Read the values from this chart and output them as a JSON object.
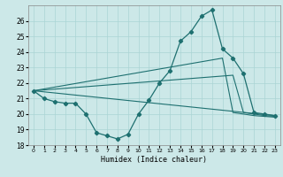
{
  "xlabel": "Humidex (Indice chaleur)",
  "xlim": [
    -0.5,
    23.5
  ],
  "ylim": [
    18,
    27
  ],
  "yticks": [
    18,
    19,
    20,
    21,
    22,
    23,
    24,
    25,
    26
  ],
  "xticks": [
    0,
    1,
    2,
    3,
    4,
    5,
    6,
    7,
    8,
    9,
    10,
    11,
    12,
    13,
    14,
    15,
    16,
    17,
    18,
    19,
    20,
    21,
    22,
    23
  ],
  "bg_color": "#cce8e8",
  "grid_color": "#aad4d4",
  "line_color": "#1e7070",
  "series_main": {
    "x": [
      0,
      1,
      2,
      3,
      4,
      5,
      6,
      7,
      8,
      9,
      10,
      11,
      12,
      13,
      14,
      15,
      16,
      17,
      18,
      19,
      20,
      21,
      22,
      23
    ],
    "y": [
      21.5,
      21.0,
      20.8,
      20.7,
      20.7,
      20.0,
      18.8,
      18.6,
      18.4,
      18.7,
      20.0,
      20.9,
      22.0,
      22.8,
      24.7,
      25.3,
      26.3,
      26.7,
      24.2,
      23.6,
      22.6,
      20.1,
      20.0,
      19.9
    ]
  },
  "series_lines": [
    {
      "x": [
        0,
        23
      ],
      "y": [
        21.5,
        19.9
      ]
    },
    {
      "x": [
        0,
        19,
        20,
        21,
        22,
        23
      ],
      "y": [
        21.5,
        22.5,
        20.1,
        20.0,
        19.9,
        19.85
      ]
    },
    {
      "x": [
        0,
        18,
        19,
        20,
        21,
        22,
        23
      ],
      "y": [
        21.5,
        23.6,
        20.1,
        20.0,
        19.9,
        19.85,
        19.8
      ]
    }
  ]
}
